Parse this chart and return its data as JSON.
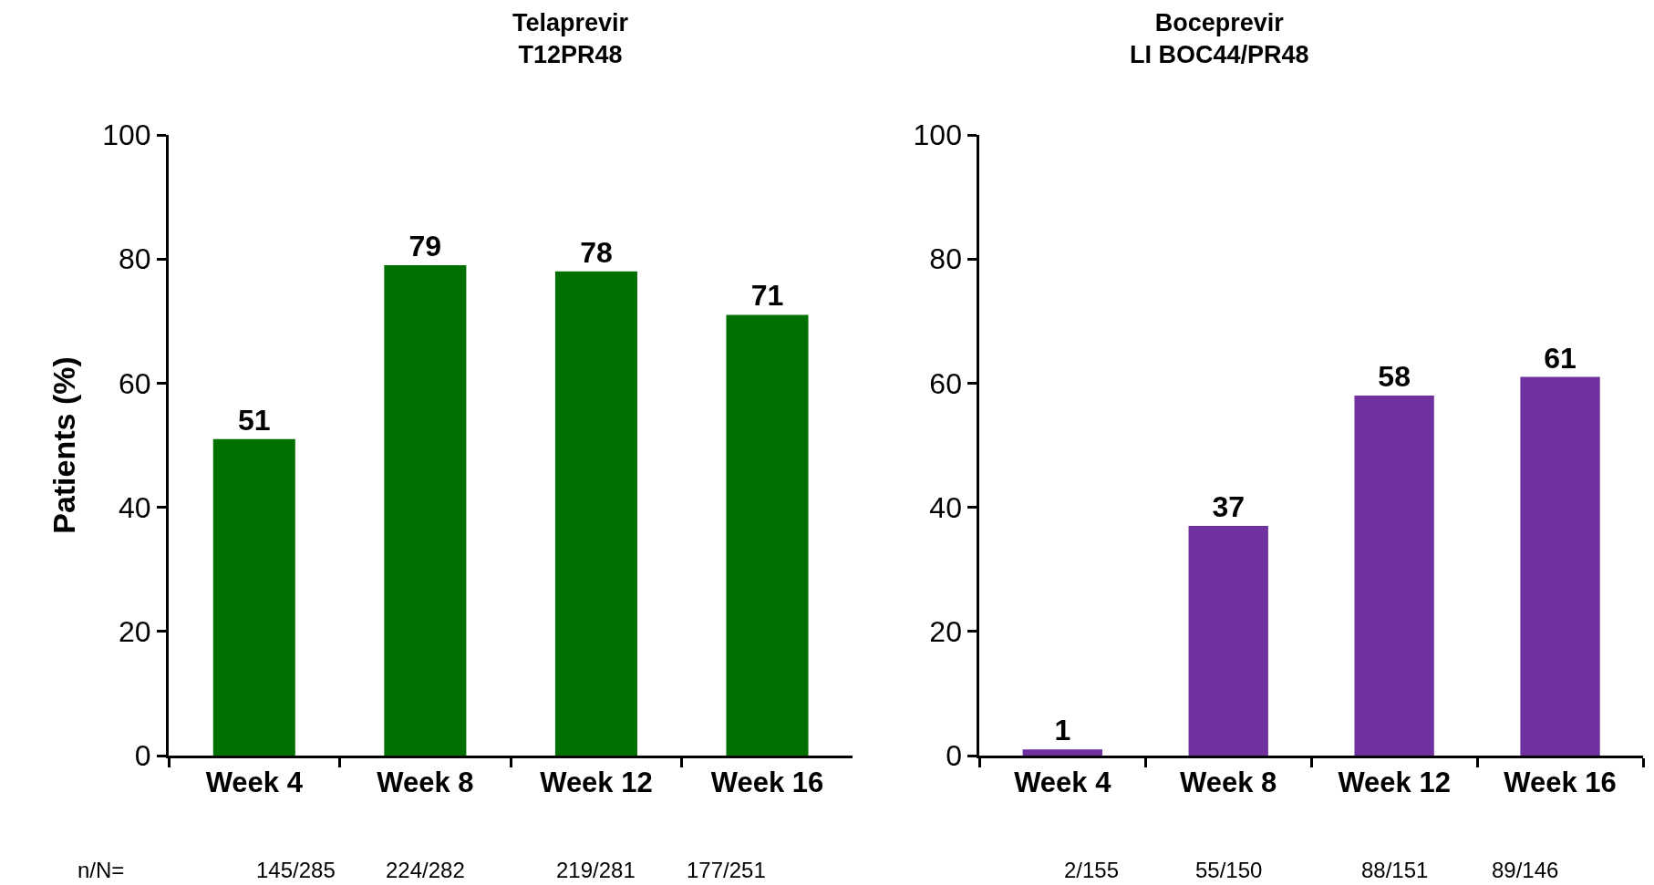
{
  "chart_data": [
    {
      "type": "bar",
      "title": "Telaprevir\nT12PR48",
      "ylabel": "Patients (%)",
      "categories": [
        "Week 4",
        "Week 8",
        "Week 12",
        "Week 16"
      ],
      "values": [
        51,
        79,
        78,
        71
      ],
      "color": "#007000",
      "ylim": [
        0,
        100
      ],
      "yticks": [
        0,
        20,
        40,
        60,
        80,
        100
      ],
      "data_labels": true,
      "annotations": [
        "n/N=",
        "145/285",
        "224/282",
        "219/281",
        "177/251"
      ]
    },
    {
      "type": "bar",
      "title": "Boceprevir\nLI BOC44/PR48",
      "categories": [
        "Week 4",
        "Week 8",
        "Week 12",
        "Week 16"
      ],
      "values": [
        1,
        37,
        58,
        61
      ],
      "color": "#7030a0",
      "ylim": [
        0,
        100
      ],
      "yticks": [
        0,
        20,
        40,
        60,
        80,
        100
      ],
      "data_labels": true,
      "annotations": [
        "2/155",
        "55/150",
        "88/151",
        "89/146"
      ]
    }
  ]
}
